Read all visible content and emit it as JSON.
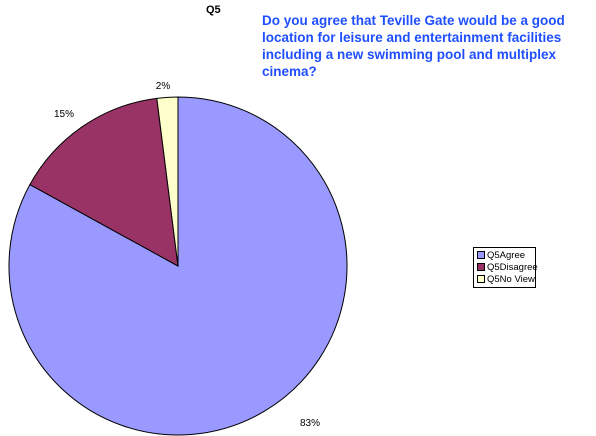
{
  "chart_data": {
    "type": "pie",
    "title": "Q5",
    "subtitle": "Do you agree that Teville Gate would be a good location for leisure and entertainment facilities including a new swimming pool and multiplex cinema?",
    "categories": [
      "Q5Agree",
      "Q5Disagree",
      "Q5No View"
    ],
    "values": [
      83,
      15,
      2
    ],
    "data_labels": [
      "83%",
      "15%",
      "2%"
    ],
    "colors": [
      "#9999ff",
      "#993366",
      "#ffffcc"
    ],
    "legend": "right"
  }
}
